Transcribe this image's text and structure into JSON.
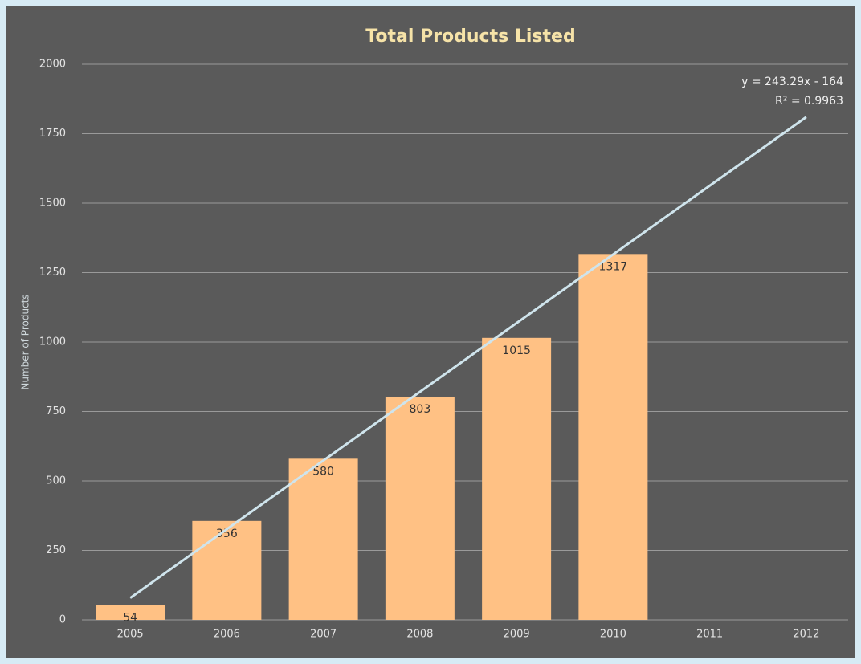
{
  "chart_data": {
    "type": "bar",
    "title": "Total Products Listed",
    "y_label": "Number of Products",
    "categories": [
      "2005",
      "2006",
      "2007",
      "2008",
      "2009",
      "2010",
      "2011",
      "2012"
    ],
    "values": [
      54,
      356,
      580,
      803,
      1015,
      1317,
      null,
      null
    ],
    "color": "#ffc184",
    "ylim": [
      0,
      2000
    ],
    "yticks": [
      0,
      250,
      500,
      750,
      1000,
      1250,
      1500,
      1750,
      2000
    ],
    "grid": true,
    "trendline": {
      "color": "#cfe4ec",
      "from": 79,
      "to": 1810
    },
    "annotations": [
      "y = 243.29x - 164",
      "R² = 0.9963"
    ]
  }
}
